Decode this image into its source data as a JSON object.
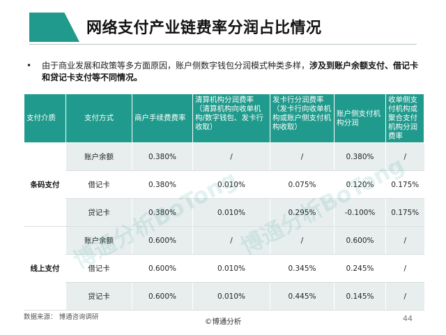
{
  "title": "网络支付产业链费率分润占比情况",
  "bullet": {
    "marker": "•",
    "text_plain": "由于商业发展和政策等多方面原因，账户侧数字钱包分润模式种类多样，",
    "text_bold": "涉及到账户余额支付、借记卡和贷记卡支付等不同情况。"
  },
  "table": {
    "headers": [
      "支付介质",
      "支付方式",
      "商户手续费费率",
      "清算机构分润费率（清算机构向收单机构/数字钱包、发卡行收取）",
      "发卡行分润费率（发卡行向收单机构或账户侧支付机构收取）",
      "账户侧支付机构分润",
      "收单侧支付机构或聚合支付机构分润费率"
    ],
    "groups": [
      {
        "medium": "条码支付",
        "rows": [
          {
            "method": "账户余额",
            "merchant_fee": "0.380%",
            "clearing": "/",
            "issuer": "/",
            "account_side": "0.380%",
            "acquirer_side": "/"
          },
          {
            "method": "借记卡",
            "merchant_fee": "0.380%",
            "clearing": "0.010%",
            "issuer": "0.075%",
            "account_side": "0.120%",
            "acquirer_side": "0.175%"
          },
          {
            "method": "贷记卡",
            "merchant_fee": "0.380%",
            "clearing": "0.010%",
            "issuer": "0.295%",
            "account_side": "-0.100%",
            "acquirer_side": "0.175%"
          }
        ]
      },
      {
        "medium": "线上支付",
        "rows": [
          {
            "method": "账户余额",
            "merchant_fee": "0.600%",
            "clearing": "/",
            "issuer": "/",
            "account_side": "0.600%",
            "acquirer_side": "/"
          },
          {
            "method": "借记卡",
            "merchant_fee": "0.600%",
            "clearing": "0.010%",
            "issuer": "0.345%",
            "account_side": "0.245%",
            "acquirer_side": "/"
          },
          {
            "method": "贷记卡",
            "merchant_fee": "0.600%",
            "clearing": "0.010%",
            "issuer": "0.445%",
            "account_side": "0.145%",
            "acquirer_side": "/"
          }
        ]
      }
    ]
  },
  "watermark": "博通分析BoTong",
  "footer": {
    "source": "数据来源： 博通咨询调研",
    "center": "©博通分析",
    "page_number": "44"
  },
  "colors": {
    "accent": "#1f9a8c",
    "row_shade": "#e8eeee"
  }
}
